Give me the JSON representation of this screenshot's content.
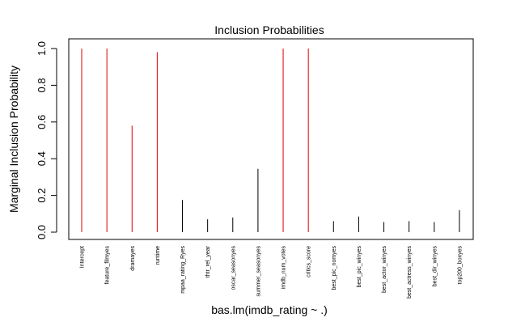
{
  "chart_data": {
    "type": "bar",
    "title": "Inclusion Probabilities",
    "xlabel": "bas.lm(imdb_rating ~ .)",
    "ylabel": "Marginal Inclusion Probability",
    "ylim": [
      0,
      1
    ],
    "yticks": [
      "0.0",
      "0.2",
      "0.4",
      "0.6",
      "0.8",
      "1.0"
    ],
    "grid": false,
    "categories": [
      "Intercept",
      "feature_filmyes",
      "dramayes",
      "runtime",
      "mpaa_rating_Ryes",
      "thtr_rel_year",
      "oscar_seasonyes",
      "summer_seasonyes",
      "imdb_num_votes",
      "critics_score",
      "best_pic_nomyes",
      "best_pic_winyes",
      "best_actor_winyes",
      "best_actress_winyes",
      "best_dir_winyes",
      "top200_boxyes"
    ],
    "values": [
      1.0,
      1.0,
      0.58,
      0.98,
      0.175,
      0.07,
      0.08,
      0.345,
      1.0,
      1.0,
      0.06,
      0.085,
      0.055,
      0.06,
      0.055,
      0.12
    ],
    "highlighted": [
      true,
      true,
      true,
      true,
      false,
      false,
      false,
      false,
      true,
      true,
      false,
      false,
      false,
      false,
      false,
      false
    ],
    "colors": {
      "highlight": "#dd0000",
      "normal": "#000000"
    }
  }
}
